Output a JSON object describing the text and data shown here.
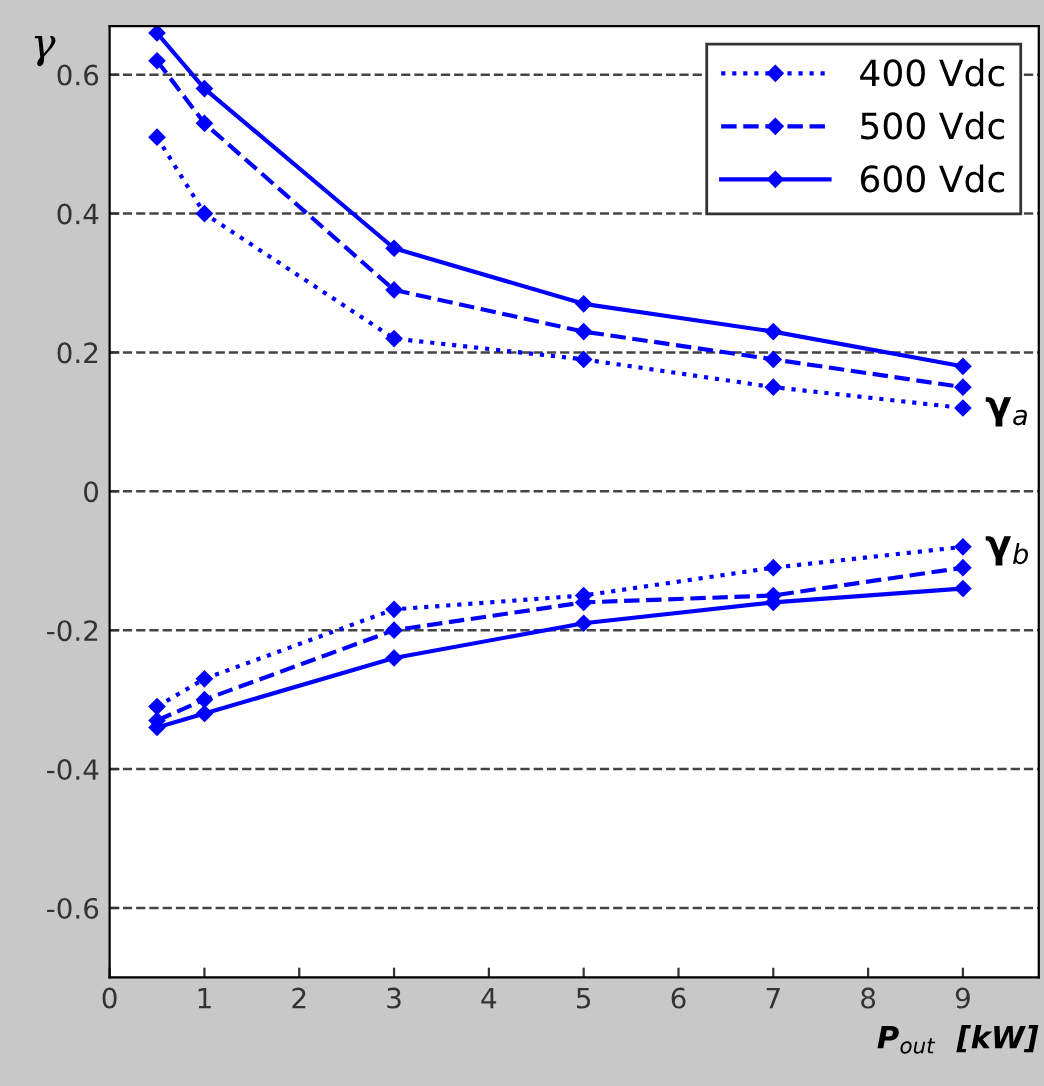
{
  "chart_data": {
    "type": "line",
    "xlabel": "P$_{out}$  [kW]",
    "ylabel": "γ",
    "xlim": [
      0,
      9.8
    ],
    "ylim": [
      -0.7,
      0.67
    ],
    "xticks": [
      0,
      1,
      2,
      3,
      4,
      5,
      6,
      7,
      8,
      9
    ],
    "yticks": [
      -0.6,
      -0.4,
      -0.2,
      0,
      0.2,
      0.4,
      0.6
    ],
    "grid": "y",
    "legend": "top right",
    "marker": "diamond",
    "series": [
      {
        "name": "400 Vdc",
        "color": "#0000ff",
        "line_style": "dotted",
        "x": [
          0.5,
          1,
          3,
          5,
          7,
          9
        ],
        "values": [
          0.51,
          0.4,
          0.22,
          0.19,
          0.15,
          0.12
        ]
      },
      {
        "name": "500 Vdc",
        "color": "#0000ff",
        "line_style": "dashed",
        "x": [
          0.5,
          1,
          3,
          5,
          7,
          9
        ],
        "values": [
          0.62,
          0.53,
          0.29,
          0.23,
          0.19,
          0.15
        ]
      },
      {
        "name": "600 Vdc",
        "color": "#0000ff",
        "line_style": "solid",
        "x": [
          0.5,
          1,
          3,
          5,
          7,
          9
        ],
        "values": [
          0.66,
          0.58,
          0.35,
          0.27,
          0.23,
          0.18
        ]
      },
      {
        "color": "#0000ff",
        "line_style": "dotted",
        "x": [
          0.5,
          1,
          3,
          5,
          7,
          9
        ],
        "values": [
          -0.31,
          -0.27,
          -0.17,
          -0.15,
          -0.11,
          -0.08
        ]
      },
      {
        "color": "#0000ff",
        "line_style": "dashed",
        "x": [
          0.5,
          1,
          3,
          5,
          7,
          9
        ],
        "values": [
          -0.33,
          -0.3,
          -0.2,
          -0.16,
          -0.15,
          -0.11
        ]
      },
      {
        "color": "#0000ff",
        "line_style": "solid",
        "x": [
          0.5,
          1,
          3,
          5,
          7,
          9
        ],
        "values": [
          -0.34,
          -0.32,
          -0.24,
          -0.19,
          -0.16,
          -0.14
        ]
      }
    ],
    "annotations": [
      {
        "text": "γ$_{a}$",
        "x": 9,
        "y": 0.12
      },
      {
        "text": "γ$_{b}$",
        "x": 9,
        "y": -0.08
      }
    ]
  }
}
